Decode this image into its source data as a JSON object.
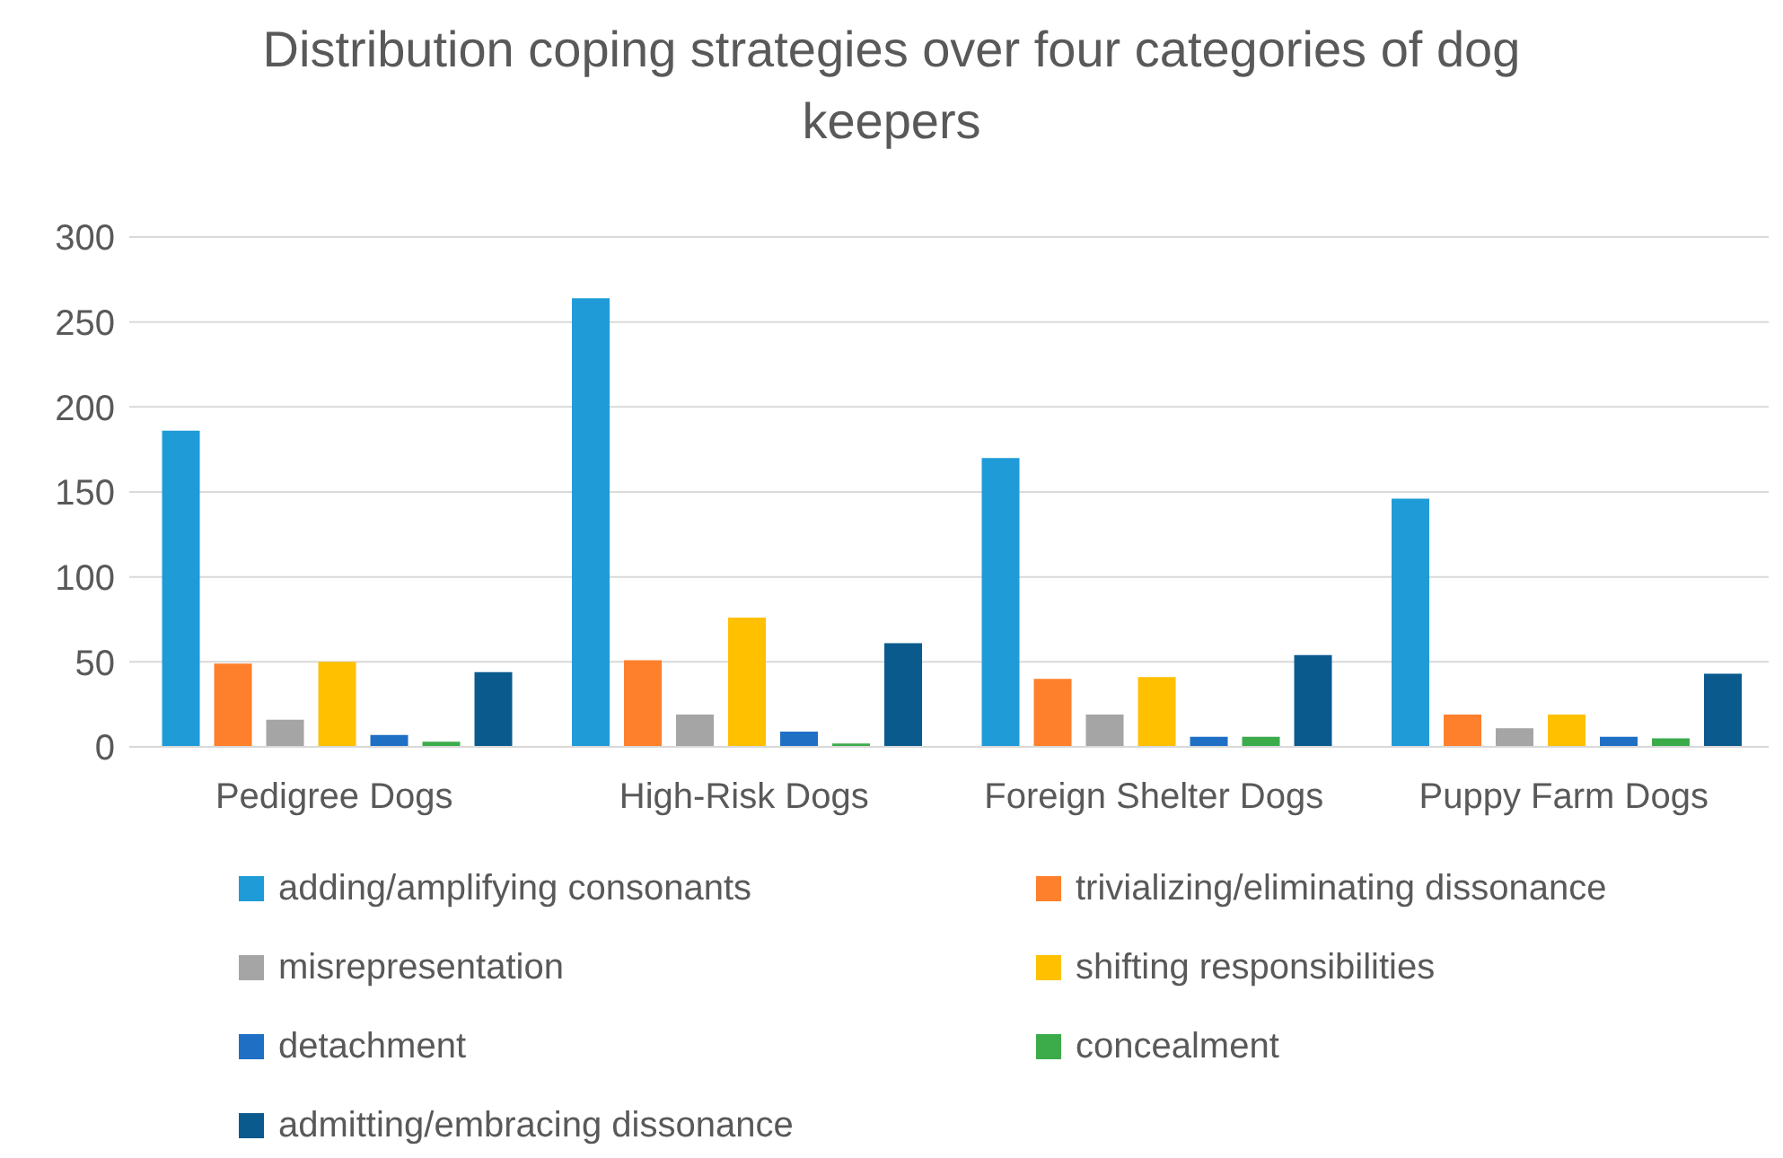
{
  "chart_data": {
    "type": "bar",
    "title": "Distribution coping strategies over four categories of dog keepers",
    "categories": [
      "Pedigree Dogs",
      "High-Risk Dogs",
      "Foreign Shelter Dogs",
      "Puppy Farm Dogs"
    ],
    "series": [
      {
        "name": "adding/amplifying consonants",
        "color": "#1f9bd7",
        "values": [
          186,
          264,
          170,
          146
        ]
      },
      {
        "name": "trivializing/eliminating dissonance",
        "color": "#fe7f2c",
        "values": [
          49,
          51,
          40,
          19
        ]
      },
      {
        "name": "misrepresentation",
        "color": "#a5a5a5",
        "values": [
          16,
          19,
          19,
          11
        ]
      },
      {
        "name": "shifting responsibilities",
        "color": "#ffc000",
        "values": [
          50,
          76,
          41,
          19
        ]
      },
      {
        "name": "detachment",
        "color": "#1f6fc5",
        "values": [
          7,
          9,
          6,
          6
        ]
      },
      {
        "name": "concealment",
        "color": "#3cab4a",
        "values": [
          3,
          2,
          6,
          5
        ]
      },
      {
        "name": "admitting/embracing dissonance",
        "color": "#0b5a8e",
        "values": [
          44,
          61,
          54,
          43
        ]
      }
    ],
    "ylim": [
      0,
      300
    ],
    "yticks": [
      0,
      50,
      100,
      150,
      200,
      250,
      300
    ],
    "grid": "y",
    "legend": "bottom"
  }
}
